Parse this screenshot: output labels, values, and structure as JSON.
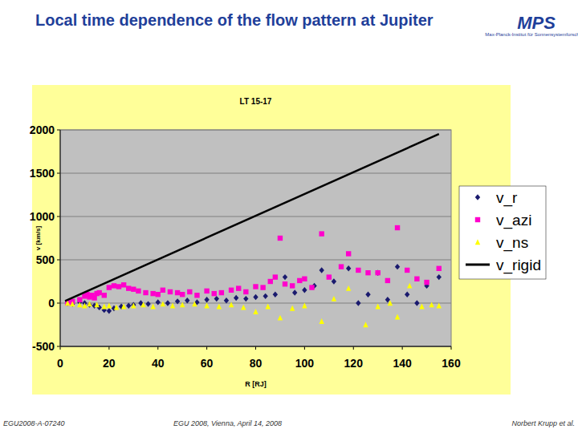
{
  "slide": {
    "title": "Local time dependence of the flow pattern at Jupiter",
    "logo": {
      "name": "MPS",
      "subtitle": "Max-Planck-Institut für Sonnensystemforschung"
    },
    "footer": [
      "EGU2008-A-07240",
      "EGU 2008, Vienna, April 14, 2008",
      "Norbert Krupp et al."
    ]
  },
  "chart_data": {
    "type": "scatter",
    "title": "LT 15-17",
    "x_label": "R [RJ]",
    "y_label": "v [km/s]",
    "xlim": [
      0,
      160
    ],
    "xticks": [
      0,
      20,
      40,
      60,
      80,
      100,
      120,
      140,
      160
    ],
    "ylim": [
      -500,
      2000
    ],
    "yticks": [
      -500,
      0,
      500,
      1000,
      1500,
      2000
    ],
    "grid": true,
    "legend": "right",
    "series": [
      {
        "name": "v_r",
        "color": "#1a1a6e",
        "marker": "diamond",
        "x": [
          3,
          5,
          8,
          10,
          12,
          14,
          16,
          18,
          20,
          22,
          25,
          28,
          30,
          33,
          36,
          40,
          44,
          48,
          52,
          56,
          60,
          64,
          68,
          72,
          76,
          80,
          84,
          88,
          92,
          96,
          100,
          104,
          107,
          112,
          118,
          122,
          126,
          130,
          134,
          138,
          142,
          146,
          150,
          155
        ],
        "values": [
          0,
          -10,
          10,
          0,
          -20,
          -30,
          -50,
          -80,
          -90,
          -60,
          -40,
          -30,
          -20,
          0,
          -10,
          10,
          0,
          20,
          30,
          10,
          40,
          50,
          30,
          60,
          50,
          70,
          80,
          100,
          300,
          120,
          150,
          200,
          380,
          250,
          400,
          0,
          100,
          350,
          40,
          420,
          100,
          0,
          200,
          300
        ]
      },
      {
        "name": "v_azi",
        "color": "#ff00cc",
        "marker": "square",
        "x": [
          3,
          4,
          5,
          8,
          10,
          11,
          12,
          13,
          14,
          15,
          16,
          18,
          20,
          22,
          24,
          26,
          28,
          30,
          32,
          35,
          38,
          40,
          42,
          45,
          48,
          50,
          53,
          56,
          60,
          63,
          66,
          70,
          73,
          76,
          80,
          83,
          86,
          88,
          90,
          92,
          95,
          98,
          100,
          103,
          107,
          110,
          115,
          118,
          122,
          126,
          130,
          134,
          138,
          142,
          146,
          150,
          155
        ],
        "values": [
          0,
          10,
          20,
          40,
          80,
          100,
          70,
          90,
          60,
          110,
          120,
          90,
          180,
          200,
          190,
          210,
          170,
          160,
          140,
          120,
          110,
          100,
          150,
          130,
          120,
          100,
          130,
          90,
          140,
          110,
          120,
          150,
          170,
          130,
          190,
          180,
          250,
          300,
          750,
          220,
          200,
          260,
          280,
          180,
          800,
          300,
          420,
          570,
          380,
          350,
          350,
          260,
          870,
          380,
          280,
          240,
          400
        ]
      },
      {
        "name": "v_ns",
        "color": "#ffff00",
        "marker": "triangle",
        "x": [
          3,
          5,
          8,
          10,
          12,
          15,
          18,
          20,
          23,
          26,
          30,
          34,
          38,
          42,
          46,
          50,
          55,
          60,
          65,
          70,
          75,
          80,
          85,
          90,
          95,
          100,
          107,
          112,
          118,
          125,
          130,
          135,
          138,
          143,
          148,
          152,
          155
        ],
        "values": [
          0,
          -10,
          -20,
          -30,
          -10,
          -20,
          -40,
          -30,
          -50,
          -40,
          -30,
          -20,
          -40,
          -10,
          -30,
          -20,
          -10,
          -30,
          -40,
          -20,
          -50,
          -100,
          -40,
          -170,
          -60,
          -30,
          -210,
          50,
          170,
          -250,
          -40,
          0,
          -160,
          200,
          -40,
          -20,
          -30
        ]
      },
      {
        "name": "v_rigid",
        "color": "#000000",
        "type": "line",
        "line_style": "solid",
        "x": [
          2,
          155
        ],
        "values": [
          25,
          1953
        ]
      }
    ]
  }
}
